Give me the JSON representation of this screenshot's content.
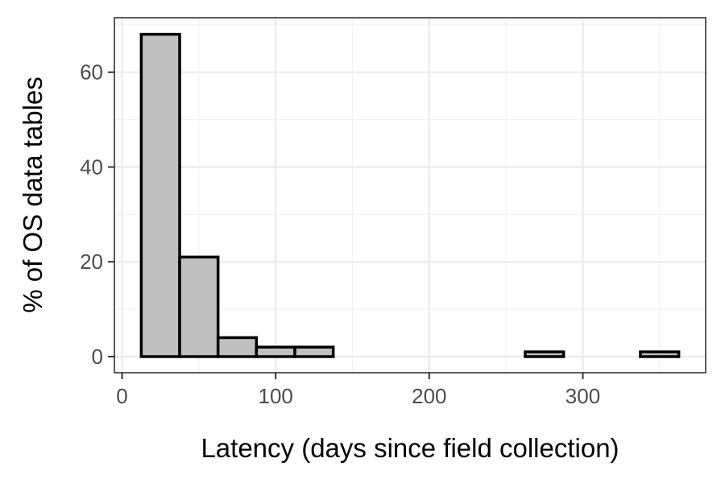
{
  "chart_data": {
    "type": "bar",
    "subtype": "histogram",
    "title": "",
    "xlabel": "Latency (days since field collection)",
    "ylabel": "% of OS data tables",
    "xlim": [
      -5,
      380
    ],
    "ylim": [
      -3.4,
      71.5
    ],
    "xticks": [
      0,
      100,
      200,
      300
    ],
    "yticks": [
      0,
      20,
      40,
      60
    ],
    "grid": true,
    "legend": "none",
    "bar_fill": "#c0c0c0",
    "bar_stroke": "#000000",
    "bins": [
      {
        "x0": 12.5,
        "x1": 37.5,
        "value": 68
      },
      {
        "x0": 37.5,
        "x1": 62.5,
        "value": 21
      },
      {
        "x0": 62.5,
        "x1": 87.5,
        "value": 4
      },
      {
        "x0": 87.5,
        "x1": 112.5,
        "value": 2
      },
      {
        "x0": 112.5,
        "x1": 137.5,
        "value": 2
      },
      {
        "x0": 137.5,
        "x1": 162.5,
        "value": 0
      },
      {
        "x0": 162.5,
        "x1": 187.5,
        "value": 0
      },
      {
        "x0": 187.5,
        "x1": 212.5,
        "value": 0
      },
      {
        "x0": 212.5,
        "x1": 237.5,
        "value": 0
      },
      {
        "x0": 237.5,
        "x1": 262.5,
        "value": 0
      },
      {
        "x0": 262.5,
        "x1": 287.5,
        "value": 1
      },
      {
        "x0": 287.5,
        "x1": 312.5,
        "value": 0
      },
      {
        "x0": 312.5,
        "x1": 337.5,
        "value": 0
      },
      {
        "x0": 337.5,
        "x1": 362.5,
        "value": 1
      }
    ]
  }
}
